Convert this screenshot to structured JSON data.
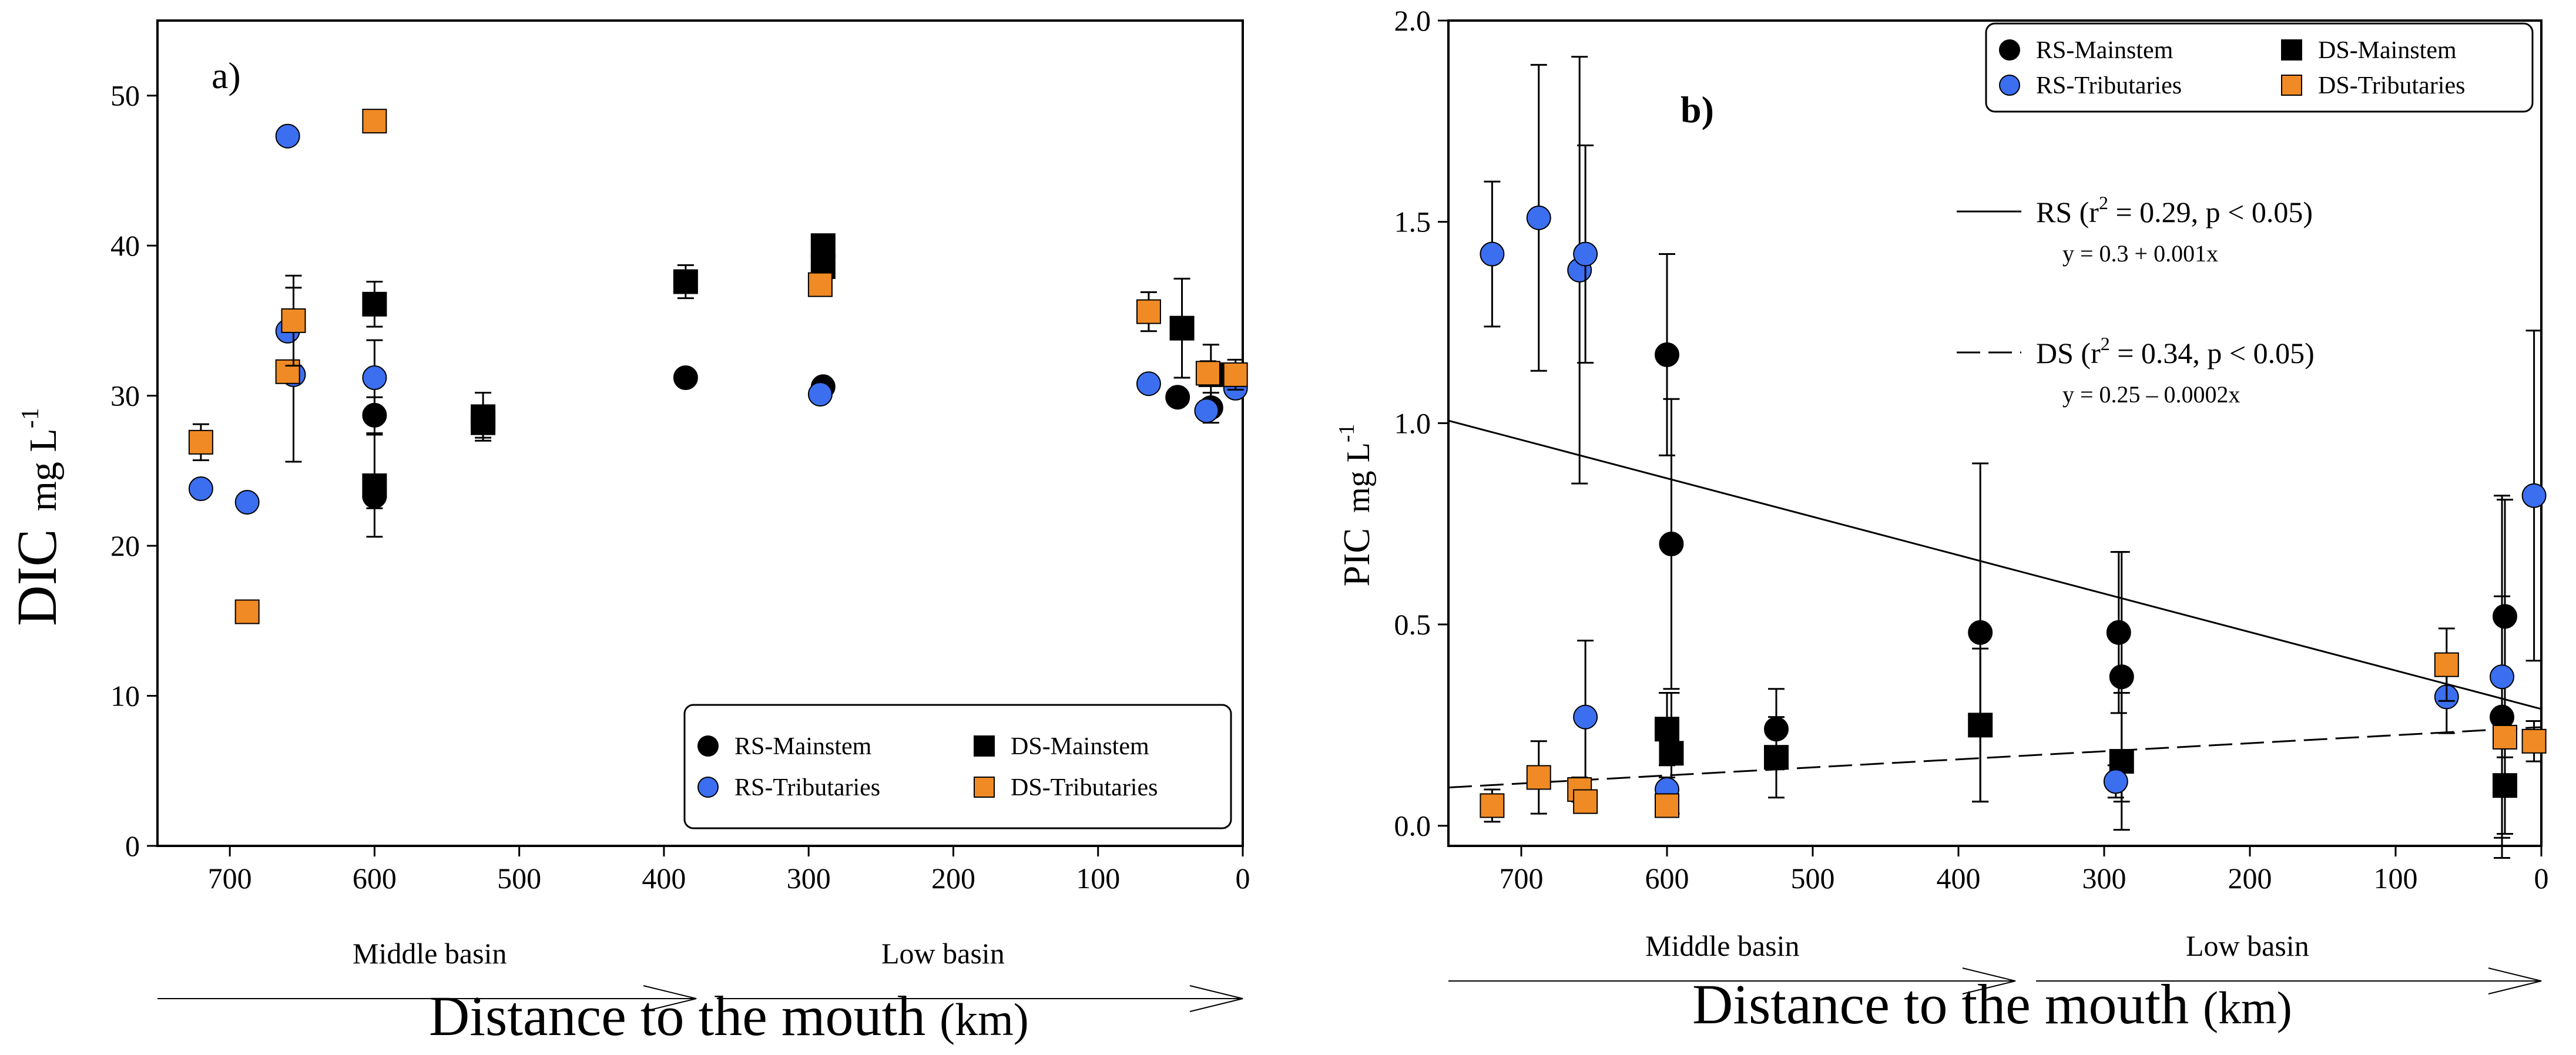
{
  "chart_data": [
    {
      "type": "scatter",
      "panel": "a)",
      "ylabel": "DIC",
      "yunit": "mg L",
      "yunit_sup": "-1",
      "xlabel": "Distance to the mouth",
      "xunit": "(km)",
      "xlim": [
        750,
        0
      ],
      "ylim": [
        0,
        55
      ],
      "xticks": [
        700,
        600,
        500,
        400,
        300,
        200,
        100,
        0
      ],
      "yticks": [
        0,
        10,
        20,
        30,
        40,
        50
      ],
      "regions": [
        "Middle basin",
        "Low basin"
      ],
      "legend": [
        "RS-Mainstem",
        "DS-Mainstem",
        "RS-Tributaries",
        "DS-Tributaries"
      ],
      "series": [
        {
          "name": "RS-Mainstem",
          "marker": "circle",
          "color": "#000000",
          "points": [
            {
              "x": 600,
              "y": 28.7,
              "err": 1.2
            },
            {
              "x": 600,
              "y": 23.3,
              "err": 0.8
            },
            {
              "x": 385,
              "y": 31.2,
              "err": 0.5
            },
            {
              "x": 290,
              "y": 30.6,
              "err": 0.5
            },
            {
              "x": 45,
              "y": 29.9,
              "err": 0.4
            },
            {
              "x": 22,
              "y": 29.2,
              "err": 1.0
            }
          ]
        },
        {
          "name": "DS-Mainstem",
          "marker": "square",
          "color": "#000000",
          "points": [
            {
              "x": 600,
              "y": 36.1,
              "err": 1.5
            },
            {
              "x": 600,
              "y": 24.0,
              "err": 3.4
            },
            {
              "x": 525,
              "y": 28.6,
              "err": 1.6
            },
            {
              "x": 525,
              "y": 28.2,
              "err": 1.0
            },
            {
              "x": 385,
              "y": 37.6,
              "err": 1.1
            },
            {
              "x": 290,
              "y": 40.0,
              "err": 0.5
            },
            {
              "x": 290,
              "y": 38.6,
              "err": 0.5
            },
            {
              "x": 42,
              "y": 34.5,
              "err": 3.3
            },
            {
              "x": 22,
              "y": 31.4,
              "err": 2.0
            }
          ]
        },
        {
          "name": "RS-Tributaries",
          "marker": "circle",
          "color": "#3b6ff0",
          "points": [
            {
              "x": 720,
              "y": 23.8,
              "err": 0
            },
            {
              "x": 688,
              "y": 22.9,
              "err": 0
            },
            {
              "x": 660,
              "y": 47.3,
              "err": 0
            },
            {
              "x": 660,
              "y": 34.3,
              "err": 0
            },
            {
              "x": 656,
              "y": 31.4,
              "err": 5.8
            },
            {
              "x": 600,
              "y": 31.2,
              "err": 2.5
            },
            {
              "x": 292,
              "y": 30.1,
              "err": 0.4
            },
            {
              "x": 65,
              "y": 30.8,
              "err": 0.5
            },
            {
              "x": 25,
              "y": 29.0,
              "err": 0.5
            },
            {
              "x": 5,
              "y": 30.5,
              "err": 0.5
            }
          ]
        },
        {
          "name": "DS-Tributaries",
          "marker": "square",
          "color": "#f08a24",
          "points": [
            {
              "x": 720,
              "y": 26.9,
              "err": 1.2
            },
            {
              "x": 688,
              "y": 15.6,
              "err": 0
            },
            {
              "x": 660,
              "y": 31.6,
              "err": 0
            },
            {
              "x": 656,
              "y": 35.0,
              "err": 3.0
            },
            {
              "x": 600,
              "y": 48.3,
              "err": 0
            },
            {
              "x": 292,
              "y": 37.4,
              "err": 0.5
            },
            {
              "x": 65,
              "y": 35.6,
              "err": 1.3
            },
            {
              "x": 24,
              "y": 31.5,
              "err": 0.8
            },
            {
              "x": 5,
              "y": 31.4,
              "err": 1.0
            }
          ]
        }
      ]
    },
    {
      "type": "scatter",
      "panel": "b)",
      "ylabel": "PIC",
      "yunit": "mg L",
      "yunit_sup": "-1",
      "xlabel": "Distance to the mouth",
      "xunit": "(km)",
      "xlim": [
        750,
        0
      ],
      "ylim": [
        -0.05,
        2.0
      ],
      "xticks": [
        700,
        600,
        500,
        400,
        300,
        200,
        100,
        0
      ],
      "yticks": [
        "0.0",
        "0.5",
        "1.0",
        "1.5",
        "2.0"
      ],
      "regions": [
        "Middle basin",
        "Low basin"
      ],
      "legend": [
        "RS-Mainstem",
        "DS-Mainstem",
        "RS-Tributaries",
        "DS-Tributaries"
      ],
      "fits": [
        {
          "name": "RS",
          "style": "solid",
          "label": "RS  (r",
          "label_sup": "2",
          "label_rest": " = 0.29,  p < 0.05)",
          "equation": "y = 0.3 + 0.001x",
          "intercept": 0.29,
          "slope": 0.000955
        },
        {
          "name": "DS",
          "style": "dashed",
          "label": "DS  (r",
          "label_sup": "2",
          "label_rest": " = 0.34,  p < 0.05)",
          "equation": "y = 0.25 – 0.0002x",
          "intercept": 0.245,
          "slope": -0.0002
        }
      ],
      "series": [
        {
          "name": "RS-Mainstem",
          "marker": "circle",
          "color": "#000000",
          "points": [
            {
              "x": 600,
              "y": 1.17,
              "err": 0.25
            },
            {
              "x": 597,
              "y": 0.7,
              "err": 0.36
            },
            {
              "x": 525,
              "y": 0.24,
              "err": 0.1
            },
            {
              "x": 385,
              "y": 0.48,
              "err": 0.42
            },
            {
              "x": 290,
              "y": 0.48,
              "err": 0.2
            },
            {
              "x": 288,
              "y": 0.37,
              "err": 0.31
            },
            {
              "x": 25,
              "y": 0.52,
              "err": 0.29
            },
            {
              "x": 27,
              "y": 0.27,
              "err": 0.3
            }
          ]
        },
        {
          "name": "DS-Mainstem",
          "marker": "square",
          "color": "#000000",
          "points": [
            {
              "x": 600,
              "y": 0.24,
              "err": 0.09
            },
            {
              "x": 597,
              "y": 0.18,
              "err": 0.15
            },
            {
              "x": 525,
              "y": 0.17,
              "err": 0.1
            },
            {
              "x": 385,
              "y": 0.25,
              "err": 0.19
            },
            {
              "x": 288,
              "y": 0.16,
              "err": 0.17
            },
            {
              "x": 25,
              "y": 0.1,
              "err": 0.12
            }
          ]
        },
        {
          "name": "RS-Tributaries",
          "marker": "circle",
          "color": "#3b6ff0",
          "points": [
            {
              "x": 720,
              "y": 1.42,
              "err": 0.18
            },
            {
              "x": 688,
              "y": 1.51,
              "err": 0.38
            },
            {
              "x": 660,
              "y": 1.38,
              "err": 0.53
            },
            {
              "x": 656,
              "y": 1.42,
              "err": 0.27
            },
            {
              "x": 656,
              "y": 0.27,
              "err": 0.19
            },
            {
              "x": 600,
              "y": 0.09,
              "err": 0.03
            },
            {
              "x": 292,
              "y": 0.11,
              "err": 0.04
            },
            {
              "x": 65,
              "y": 0.32,
              "err": 0.09
            },
            {
              "x": 27,
              "y": 0.37,
              "err": 0.45
            },
            {
              "x": 5,
              "y": 0.82,
              "err": 0.41
            }
          ]
        },
        {
          "name": "DS-Tributaries",
          "marker": "square",
          "color": "#f08a24",
          "points": [
            {
              "x": 720,
              "y": 0.05,
              "err": 0.04
            },
            {
              "x": 688,
              "y": 0.12,
              "err": 0.09
            },
            {
              "x": 660,
              "y": 0.09,
              "err": 0.03
            },
            {
              "x": 656,
              "y": 0.06,
              "err": 0.02
            },
            {
              "x": 600,
              "y": 0.05,
              "err": 0.02
            },
            {
              "x": 65,
              "y": 0.4,
              "err": 0.09
            },
            {
              "x": 25,
              "y": 0.22,
              "err": 0.05
            },
            {
              "x": 5,
              "y": 0.21,
              "err": 0.05
            }
          ]
        }
      ]
    }
  ]
}
